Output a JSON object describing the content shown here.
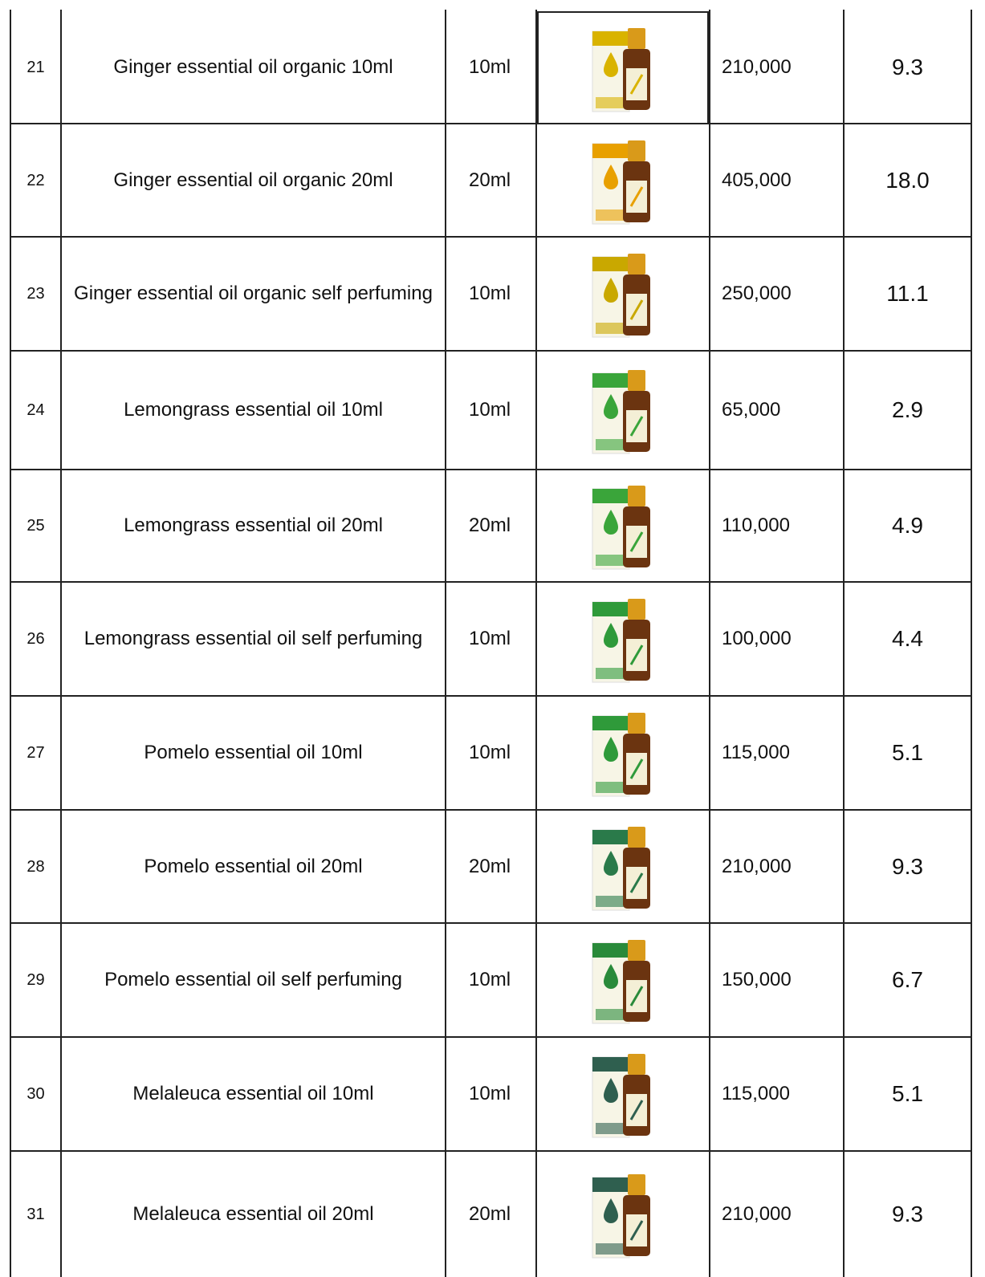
{
  "table": {
    "rows": [
      [
        "21",
        "Ginger essential oil organic 10ml",
        "10ml",
        "210,000",
        "9.3"
      ],
      [
        "22",
        "Ginger essential oil organic 20ml",
        "20ml",
        "405,000",
        "18.0"
      ],
      [
        "23",
        "Ginger essential oil organic self perfuming",
        "10ml",
        "250,000",
        "11.1"
      ],
      [
        "24",
        "Lemongrass essential oil 10ml",
        "10ml",
        "65,000",
        "2.9"
      ],
      [
        "25",
        "Lemongrass essential oil 20ml",
        "20ml",
        "110,000",
        "4.9"
      ],
      [
        "26",
        "Lemongrass essential oil self perfuming",
        "10ml",
        "100,000",
        "4.4"
      ],
      [
        "27",
        "Pomelo essential oil 10ml",
        "10ml",
        "115,000",
        "5.1"
      ],
      [
        "28",
        "Pomelo essential oil 20ml",
        "20ml",
        "210,000",
        "9.3"
      ],
      [
        "29",
        "Pomelo essential oil self perfuming",
        "10ml",
        "150,000",
        "6.7"
      ],
      [
        "30",
        "Melaleuca essential oil 10ml",
        "10ml",
        "115,000",
        "5.1"
      ],
      [
        "31",
        "Melaleuca essential oil 20ml",
        "20ml",
        "210,000",
        "9.3"
      ]
    ]
  }
}
